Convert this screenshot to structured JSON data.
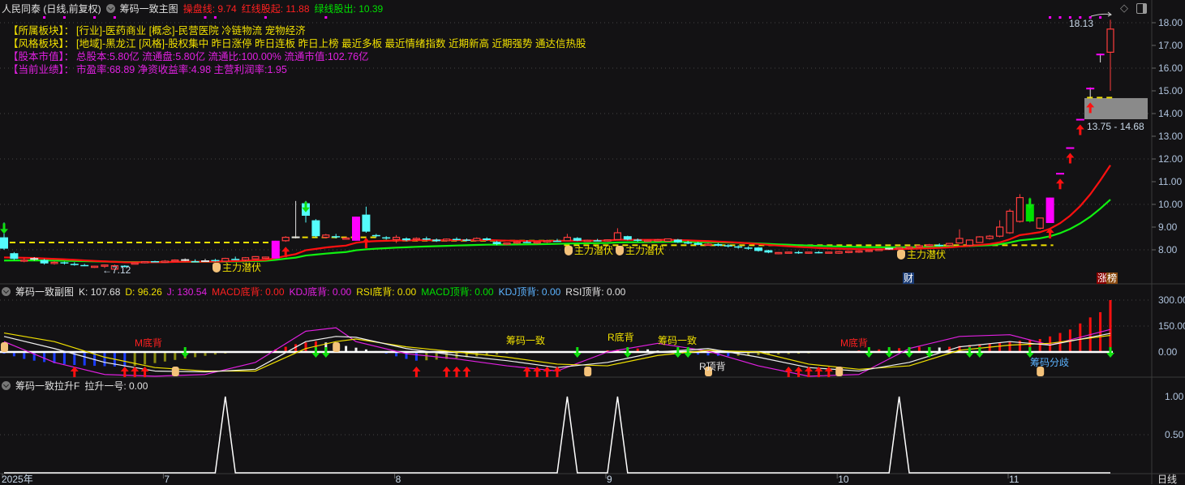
{
  "header": {
    "stock": "人民同泰 (日线,前复权)",
    "indicator": "筹码一致主图",
    "caopan": "操盘线: 9.74",
    "hongxian": "红线股起: 11.88",
    "lvxian": "绿线股出: 10.39"
  },
  "info": [
    {
      "label": "【所属板块】：",
      "value": "[行业]-医药商业 [概念]-民营医院 冷链物流 宠物经济",
      "color": "#f0e000"
    },
    {
      "label": "【风格板块】：",
      "value": "[地域]-黑龙江 [风格]-股权集中 昨日涨停 昨日连板 昨日上榜 最近多板 最近情绪指数 近期新高 近期强势 通达信热股",
      "color": "#f0e000"
    },
    {
      "label": "【股本市值】：",
      "value": "总股本:5.80亿 流通盘:5.80亿 流通比:100.00% 流通市值:102.76亿",
      "color": "#e020e0"
    },
    {
      "label": "【当前业绩】：",
      "value": "市盈率:68.89 净资收益率:4.98 主营利润率:1.95",
      "color": "#e020e0"
    }
  ],
  "main_chart": {
    "price_axis": [
      "18.00",
      "17.00",
      "16.00",
      "15.00",
      "14.00",
      "13.00",
      "12.00",
      "11.00",
      "10.00",
      "9.00",
      "8.00"
    ],
    "price_axis_values": [
      18,
      17,
      16,
      15,
      14,
      13,
      12,
      11,
      10,
      9,
      8
    ],
    "grid_prices": [
      18,
      16,
      14,
      12,
      10,
      8
    ],
    "candles": [
      [
        8.55,
        9.2,
        8.0,
        8.05
      ],
      [
        7.85,
        7.9,
        7.55,
        7.6
      ],
      [
        7.5,
        7.65,
        7.45,
        7.55
      ],
      [
        7.6,
        7.68,
        7.52,
        7.6
      ],
      [
        7.55,
        7.6,
        7.35,
        7.4
      ],
      [
        7.4,
        7.5,
        7.35,
        7.45
      ],
      [
        7.45,
        7.48,
        7.35,
        7.4
      ],
      [
        7.38,
        7.45,
        7.3,
        7.35
      ],
      [
        7.33,
        7.38,
        7.28,
        7.32
      ],
      [
        7.25,
        7.3,
        7.2,
        7.28
      ],
      [
        7.3,
        7.35,
        7.2,
        7.33
      ],
      [
        7.15,
        7.35,
        7.12,
        7.3
      ],
      [
        7.3,
        7.32,
        7.22,
        7.25
      ],
      [
        7.4,
        7.45,
        7.38,
        7.42
      ],
      [
        7.45,
        7.5,
        7.4,
        7.48
      ],
      [
        7.5,
        7.52,
        7.45,
        7.48
      ],
      [
        7.45,
        7.55,
        7.42,
        7.5
      ],
      [
        7.52,
        7.58,
        7.48,
        7.55
      ],
      [
        7.55,
        7.62,
        7.5,
        7.55
      ],
      [
        7.5,
        7.58,
        7.45,
        7.48
      ],
      [
        7.5,
        7.6,
        7.48,
        7.5
      ],
      [
        7.55,
        7.6,
        7.48,
        7.52
      ],
      [
        7.5,
        7.65,
        7.48,
        7.62
      ],
      [
        7.6,
        7.7,
        7.55,
        7.58
      ],
      [
        7.55,
        7.68,
        7.5,
        7.65
      ],
      [
        7.6,
        7.72,
        7.58,
        7.7
      ],
      [
        7.62,
        7.7,
        7.6,
        7.68
      ],
      [
        7.62,
        8.4,
        7.62,
        8.4
      ],
      [
        8.4,
        8.6,
        8.35,
        8.55
      ],
      [
        8.55,
        10.15,
        8.5,
        8.55
      ],
      [
        10.05,
        10.15,
        9.2,
        9.5
      ],
      [
        9.3,
        9.35,
        8.55,
        8.6
      ],
      [
        8.55,
        8.7,
        8.5,
        8.65
      ],
      [
        8.6,
        8.7,
        8.5,
        8.55
      ],
      [
        8.5,
        8.55,
        8.45,
        8.52
      ],
      [
        8.4,
        9.46,
        8.4,
        9.46
      ],
      [
        9.55,
        9.9,
        8.75,
        8.8
      ],
      [
        8.65,
        8.7,
        8.55,
        8.6
      ],
      [
        8.55,
        8.6,
        8.45,
        8.5
      ],
      [
        8.45,
        8.65,
        8.3,
        8.55
      ],
      [
        8.5,
        8.55,
        8.38,
        8.42
      ],
      [
        8.45,
        8.55,
        8.4,
        8.5
      ],
      [
        8.5,
        8.58,
        8.42,
        8.46
      ],
      [
        8.45,
        8.5,
        8.35,
        8.38
      ],
      [
        8.4,
        8.5,
        8.36,
        8.47
      ],
      [
        8.48,
        8.55,
        8.42,
        8.45
      ],
      [
        8.45,
        8.5,
        8.38,
        8.42
      ],
      [
        8.4,
        8.55,
        8.38,
        8.5
      ],
      [
        8.5,
        8.55,
        8.4,
        8.43
      ],
      [
        8.35,
        8.4,
        8.2,
        8.25
      ],
      [
        8.25,
        8.32,
        8.2,
        8.3
      ],
      [
        8.3,
        8.4,
        8.25,
        8.35
      ],
      [
        8.35,
        8.42,
        8.3,
        8.32
      ],
      [
        8.3,
        8.38,
        8.25,
        8.35
      ],
      [
        8.35,
        8.45,
        8.3,
        8.4
      ],
      [
        8.4,
        8.48,
        8.35,
        8.38
      ],
      [
        8.4,
        8.7,
        8.38,
        8.55
      ],
      [
        8.52,
        8.56,
        8.38,
        8.4
      ],
      [
        8.4,
        8.45,
        8.35,
        8.42
      ],
      [
        8.42,
        8.48,
        8.38,
        8.4
      ],
      [
        8.4,
        8.46,
        8.36,
        8.44
      ],
      [
        8.45,
        8.95,
        8.42,
        8.75
      ],
      [
        8.6,
        8.62,
        8.42,
        8.45
      ],
      [
        8.45,
        8.5,
        8.35,
        8.4
      ],
      [
        8.4,
        8.45,
        8.35,
        8.42
      ],
      [
        8.4,
        8.48,
        8.36,
        8.44
      ],
      [
        8.38,
        8.5,
        8.35,
        8.48
      ],
      [
        8.45,
        8.48,
        8.3,
        8.33
      ],
      [
        8.33,
        8.4,
        8.25,
        8.3
      ],
      [
        8.3,
        8.35,
        8.2,
        8.22
      ],
      [
        8.22,
        8.3,
        8.18,
        8.25
      ],
      [
        8.25,
        8.3,
        8.15,
        8.18
      ],
      [
        8.2,
        8.25,
        8.1,
        8.15
      ],
      [
        8.15,
        8.2,
        8.05,
        8.1
      ],
      [
        8.1,
        8.15,
        8.0,
        8.05
      ],
      [
        8.1,
        8.12,
        7.92,
        7.95
      ],
      [
        7.98,
        8.0,
        7.85,
        7.88
      ],
      [
        7.85,
        7.9,
        7.8,
        7.88
      ],
      [
        7.88,
        7.92,
        7.84,
        7.9
      ],
      [
        7.9,
        7.95,
        7.82,
        7.86
      ],
      [
        7.86,
        7.9,
        7.82,
        7.9
      ],
      [
        7.9,
        7.94,
        7.84,
        7.87
      ],
      [
        7.88,
        7.92,
        7.85,
        7.9
      ],
      [
        7.85,
        7.95,
        7.82,
        7.92
      ],
      [
        7.88,
        7.96,
        7.85,
        7.94
      ],
      [
        7.9,
        7.98,
        7.86,
        7.95
      ],
      [
        7.95,
        8.0,
        7.9,
        7.98
      ],
      [
        8.0,
        8.05,
        7.95,
        8.02
      ],
      [
        8.05,
        8.08,
        8.0,
        8.05
      ],
      [
        8.05,
        8.12,
        8.02,
        8.1
      ],
      [
        8.1,
        8.15,
        8.05,
        8.12
      ],
      [
        8.12,
        8.2,
        8.08,
        8.18
      ],
      [
        8.2,
        8.26,
        8.15,
        8.22
      ],
      [
        8.22,
        8.28,
        8.15,
        8.2
      ],
      [
        8.2,
        8.3,
        8.15,
        8.28
      ],
      [
        8.3,
        8.9,
        8.28,
        8.5
      ],
      [
        8.2,
        8.45,
        8.15,
        8.43
      ],
      [
        8.32,
        8.6,
        8.3,
        8.57
      ],
      [
        8.5,
        8.65,
        8.45,
        8.6
      ],
      [
        8.6,
        9.3,
        8.55,
        9.0
      ],
      [
        8.75,
        9.8,
        8.7,
        9.7
      ],
      [
        9.25,
        10.45,
        9.2,
        10.3
      ],
      [
        10.0,
        10.3,
        9.2,
        9.25
      ],
      [
        8.95,
        9.4,
        8.9,
        9.4
      ],
      [
        9.18,
        10.3,
        9.18,
        10.3
      ],
      [
        11.35,
        11.35,
        11.35,
        11.35
      ],
      [
        12.48,
        12.48,
        12.48,
        12.48
      ],
      [
        13.73,
        13.73,
        13.73,
        13.73
      ],
      [
        15.1,
        15.15,
        14.7,
        15.1
      ],
      [
        16.6,
        16.64,
        16.25,
        16.6
      ],
      [
        16.7,
        18.13,
        15.0,
        17.72
      ]
    ],
    "magenta_candles": [
      27,
      35,
      104,
      105,
      106,
      107,
      108,
      109
    ],
    "green_candles": [
      102
    ],
    "colors": {
      "up": "#ff3c3c",
      "down": "#54fcfc",
      "limit": "#ff00ff",
      "special": "#00e000",
      "red_line": "#ff1010",
      "green_line": "#10f010",
      "dash": "#f0e000"
    },
    "dash_levels": [
      {
        "from": 0,
        "to": 27,
        "price": 8.32
      },
      {
        "from": 29,
        "to": 37,
        "price": 8.55
      },
      {
        "from": 38,
        "to": 55,
        "price": 8.4
      },
      {
        "from": 56,
        "to": 104,
        "price": 8.2
      },
      {
        "from": 108,
        "to": 110,
        "price": 14.7
      }
    ],
    "signal_dots": [
      4,
      6,
      9,
      11,
      20,
      21,
      26,
      32,
      104,
      105,
      106,
      107,
      108,
      109
    ],
    "red_up_arrows": [
      28,
      36,
      104,
      105,
      106,
      107,
      108
    ],
    "green_down_arrows": [
      0,
      30,
      102
    ],
    "gap_zone": {
      "low": 13.75,
      "high": 14.68,
      "label": "13.75 - 14.68"
    },
    "high_label": "18.13",
    "low_label": "←7.12",
    "hand_labels": [
      {
        "index": 21,
        "text": "主力潜伏"
      },
      {
        "index": 56,
        "text": "主力潜伏"
      },
      {
        "index": 61,
        "text": "主力潜伏"
      },
      {
        "index": 89,
        "text": "主力潜伏"
      }
    ],
    "badges": {
      "cai": "财",
      "zhang": "涨",
      "bang": "榜"
    }
  },
  "sub_chart": {
    "title": "筹码一致副图",
    "k": "K: 107.68",
    "d": "D: 96.26",
    "j": "J: 130.54",
    "macd_di": "MACD底背: 0.00",
    "kdj_di": "KDJ底背: 0.00",
    "rsi_di": "RSI底背: 0.00",
    "macd_ding": "MACD顶背: 0.00",
    "kdj_ding": "KDJ顶背: 0.00",
    "rsi_ding": "RSI顶背: 0.00",
    "axis": [
      "300.00",
      "150.00",
      "0.00"
    ],
    "axis_values": [
      300,
      150,
      0
    ],
    "line_index": [
      0,
      5,
      10,
      15,
      20,
      25,
      30,
      33,
      35,
      40,
      45,
      50,
      55,
      60,
      65,
      70,
      75,
      80,
      85,
      90,
      95,
      100,
      104,
      110
    ],
    "K": [
      90,
      20,
      -60,
      -110,
      -115,
      -100,
      60,
      90,
      85,
      20,
      -20,
      -50,
      -90,
      -60,
      0,
      20,
      -30,
      -90,
      -110,
      -60,
      30,
      60,
      40,
      107.68
    ],
    "D": [
      110,
      60,
      -30,
      -90,
      -110,
      -110,
      20,
      60,
      75,
      30,
      0,
      -30,
      -70,
      -80,
      -20,
      10,
      0,
      -70,
      -100,
      -80,
      10,
      40,
      50,
      96.26
    ],
    "J": [
      60,
      -60,
      -130,
      -140,
      -130,
      -60,
      120,
      140,
      60,
      -10,
      -40,
      -80,
      -110,
      0,
      50,
      5,
      -80,
      -140,
      -130,
      20,
      90,
      100,
      40,
      130.54
    ],
    "bars": [
      -10,
      -25,
      -40,
      -50,
      -58,
      -65,
      -70,
      -75,
      -78,
      -80,
      -82,
      -84,
      -85,
      -80,
      -72,
      -64,
      -55,
      -46,
      -38,
      -30,
      -22,
      -15,
      -9,
      -5,
      -2,
      -1,
      0,
      15,
      30,
      45,
      55,
      62,
      55,
      45,
      35,
      25,
      15,
      5,
      -10,
      -25,
      -40,
      -50,
      -48,
      -44,
      -40,
      -35,
      -30,
      -25,
      -20,
      -15,
      -10,
      -8,
      -6,
      -4,
      -3,
      -2,
      -1,
      0,
      2,
      5,
      10,
      14,
      18,
      20,
      15,
      8,
      2,
      -5,
      -10,
      -15,
      -20,
      -22,
      -24,
      -22,
      -20,
      -18,
      -16,
      -14,
      -12,
      -10,
      -8,
      -5,
      0,
      3,
      6,
      9,
      12,
      15,
      18,
      22,
      26,
      30,
      28,
      26,
      30,
      35,
      40,
      45,
      50,
      55,
      60,
      65,
      70,
      75,
      90,
      110,
      130,
      165,
      200,
      230,
      300
    ],
    "red_up_arrows": [
      7,
      12,
      13,
      14,
      41,
      44,
      45,
      46,
      52,
      53,
      54,
      55,
      78,
      79,
      80,
      81,
      82
    ],
    "green_down_arrows": [
      18,
      31,
      32,
      57,
      62,
      67,
      68,
      86,
      88,
      90,
      92,
      96,
      97,
      102,
      110
    ],
    "hands": [
      0,
      17,
      33,
      58,
      70,
      83,
      103
    ],
    "labels": {
      "m1": "M底背",
      "c1": "筹码一致",
      "r1": "R底背",
      "c2": "筹码一致",
      "rd": "R顶背",
      "m2": "M底背",
      "fq": "筹码分歧"
    }
  },
  "third_chart": {
    "title": "筹码一致拉升F",
    "value": "拉升一号: 0.00",
    "axis": [
      "1.00",
      "0.50"
    ],
    "signal_indices": [
      22,
      56,
      61,
      89
    ]
  },
  "x_axis": [
    {
      "index": 0,
      "label": "2025年"
    },
    {
      "index": 16,
      "label": "7"
    },
    {
      "index": 39,
      "label": "8"
    },
    {
      "index": 60,
      "label": "9"
    },
    {
      "index": 83,
      "label": "10"
    },
    {
      "index": 100,
      "label": "11"
    }
  ],
  "period": "日线"
}
